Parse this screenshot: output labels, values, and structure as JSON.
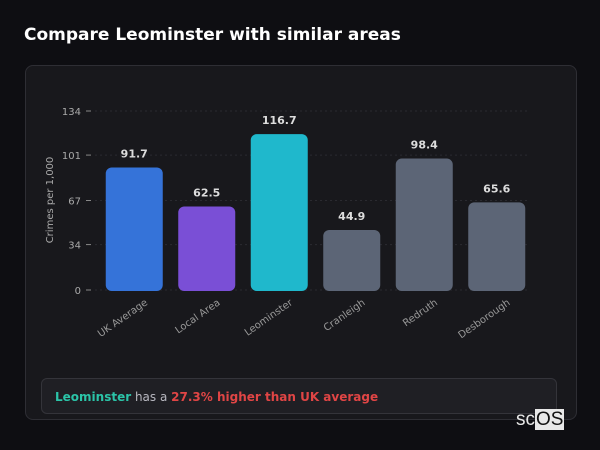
{
  "title": "Compare Leominster with similar areas",
  "chart_data": {
    "type": "bar",
    "categories": [
      "UK Average",
      "Local Area",
      "Leominster",
      "Cranleigh",
      "Redruth",
      "Desborough"
    ],
    "values": [
      91.7,
      62.5,
      116.7,
      44.9,
      98.4,
      65.6
    ],
    "colors": [
      "#3573d9",
      "#7a4fd6",
      "#1fb8cc",
      "#5c6576",
      "#5c6576",
      "#5c6576"
    ],
    "ylabel": "Crimes per 1,000",
    "yticks": [
      0,
      34,
      67,
      101,
      134
    ],
    "ylim": [
      0,
      134
    ],
    "grid": true
  },
  "note": {
    "area": "Leominster",
    "middle": " has a ",
    "highlight": "27.3% higher than UK average"
  },
  "logo": {
    "text": "scOS"
  }
}
